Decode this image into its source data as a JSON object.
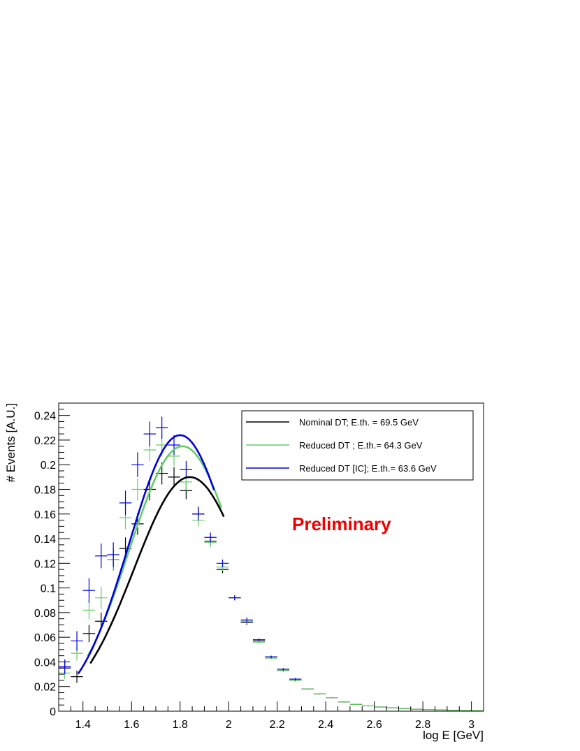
{
  "chart_data": {
    "type": "scatter",
    "title": "",
    "xlabel": "log E [GeV]",
    "ylabel": "# Events [A.U.]",
    "xlim": [
      1.3,
      3.05
    ],
    "ylim": [
      0,
      0.25
    ],
    "x_ticks": [
      1.4,
      1.6,
      1.8,
      2.0,
      2.2,
      2.4,
      2.6,
      2.8,
      3.0
    ],
    "x_tick_labels": [
      "1.4",
      "1.6",
      "1.8",
      "2",
      "2.2",
      "2.4",
      "2.6",
      "2.8",
      "3"
    ],
    "y_ticks": [
      0,
      0.02,
      0.04,
      0.06,
      0.08,
      0.1,
      0.12,
      0.14,
      0.16,
      0.18,
      0.2,
      0.22,
      0.24
    ],
    "y_tick_labels": [
      "0",
      "0.02",
      "0.04",
      "0.06",
      "0.08",
      "0.1",
      "0.12",
      "0.14",
      "0.16",
      "0.18",
      "0.2",
      "0.22",
      "0.24"
    ],
    "grid": false,
    "legend_position": "top-right",
    "annotation": {
      "text": "Preliminary",
      "color": "#ee0000"
    },
    "bin_half_width": 0.025,
    "series": [
      {
        "name": "Nominal DT; E.th. = 69.5 GeV",
        "color": "#000000",
        "x": [
          1.325,
          1.375,
          1.425,
          1.475,
          1.525,
          1.575,
          1.625,
          1.675,
          1.725,
          1.775,
          1.825,
          1.875,
          1.925,
          1.975,
          2.025,
          2.075,
          2.125,
          2.175,
          2.225,
          2.275,
          2.325,
          2.375,
          2.425,
          2.475,
          2.525,
          2.575,
          2.625,
          2.675,
          2.725,
          2.775,
          2.825,
          2.875,
          2.925,
          2.975,
          3.025
        ],
        "y": [
          0.035,
          0.028,
          0.063,
          0.073,
          0.123,
          0.132,
          0.152,
          0.18,
          0.193,
          0.19,
          0.179,
          0.16,
          0.138,
          0.115,
          0.092,
          0.072,
          0.057,
          0.044,
          0.033,
          0.025,
          0.018,
          0.014,
          0.011,
          0.0075,
          0.0055,
          0.0043,
          0.0034,
          0.0027,
          0.0021,
          0.0016,
          0.0012,
          0.001,
          0.0008,
          0.0006,
          0.0005
        ],
        "yerr": [
          0.005,
          0.005,
          0.007,
          0.007,
          0.009,
          0.009,
          0.009,
          0.009,
          0.009,
          0.008,
          0.007,
          0.006,
          0.004,
          0.003,
          0.002,
          0.002,
          0.001,
          0.001,
          0.001,
          0.001,
          0.0005,
          0.0005,
          0.0005,
          0.0005,
          0.0005,
          0.0004,
          0.0003,
          0.0003,
          0.0002,
          0.0002,
          0.0002,
          0.0001,
          0.0001,
          0.0001,
          0.0001
        ],
        "fit": {
          "x_range": [
            1.43,
            1.98
          ],
          "mu": 1.84,
          "sigma": 0.23,
          "peak": 0.19
        }
      },
      {
        "name": "Reduced DT ; E.th.= 64.3 GeV",
        "color": "#66cc66",
        "x": [
          1.325,
          1.375,
          1.425,
          1.475,
          1.525,
          1.575,
          1.625,
          1.675,
          1.725,
          1.775,
          1.825,
          1.875,
          1.925,
          1.975,
          2.025,
          2.075,
          2.125,
          2.175,
          2.225,
          2.275,
          2.325,
          2.375,
          2.425,
          2.475,
          2.525,
          2.575,
          2.625,
          2.675,
          2.725,
          2.775,
          2.825,
          2.875,
          2.925,
          2.975,
          3.025
        ],
        "y": [
          0.031,
          0.047,
          0.082,
          0.092,
          0.123,
          0.157,
          0.18,
          0.212,
          0.216,
          0.207,
          0.186,
          0.155,
          0.137,
          0.117,
          0.092,
          0.073,
          0.056,
          0.043,
          0.033,
          0.025,
          0.018,
          0.014,
          0.011,
          0.0075,
          0.0055,
          0.0043,
          0.0034,
          0.0027,
          0.0021,
          0.0016,
          0.0012,
          0.001,
          0.0008,
          0.0006,
          0.0005
        ],
        "yerr": [
          0.005,
          0.006,
          0.008,
          0.009,
          0.009,
          0.009,
          0.009,
          0.009,
          0.009,
          0.008,
          0.007,
          0.005,
          0.004,
          0.003,
          0.002,
          0.002,
          0.001,
          0.001,
          0.001,
          0.001,
          0.0005,
          0.0005,
          0.0005,
          0.0005,
          0.0005,
          0.0004,
          0.0003,
          0.0003,
          0.0002,
          0.0002,
          0.0002,
          0.0001,
          0.0001,
          0.0001,
          0.0001
        ],
        "fit": {
          "x_range": [
            1.42,
            1.97
          ],
          "mu": 1.81,
          "sigma": 0.22,
          "peak": 0.215
        }
      },
      {
        "name": "Reduced DT [IC]; E.th.= 63.6 GeV",
        "color": "#0000dd",
        "x": [
          1.325,
          1.375,
          1.425,
          1.475,
          1.525,
          1.575,
          1.625,
          1.675,
          1.725,
          1.775,
          1.825,
          1.875,
          1.925,
          1.975,
          2.025,
          2.075,
          2.125,
          2.175,
          2.225,
          2.275
        ],
        "y": [
          0.036,
          0.057,
          0.098,
          0.126,
          0.127,
          0.169,
          0.2,
          0.225,
          0.23,
          0.216,
          0.196,
          0.16,
          0.141,
          0.12,
          0.092,
          0.074,
          0.058,
          0.044,
          0.034,
          0.026
        ],
        "yerr": [
          0.006,
          0.008,
          0.01,
          0.01,
          0.01,
          0.01,
          0.01,
          0.01,
          0.009,
          0.008,
          0.007,
          0.005,
          0.004,
          0.003,
          0.002,
          0.002,
          0.001,
          0.001,
          0.001,
          0.001
        ],
        "fit": {
          "x_range": [
            1.38,
            1.94
          ],
          "mu": 1.8,
          "sigma": 0.21,
          "peak": 0.224
        }
      }
    ]
  }
}
